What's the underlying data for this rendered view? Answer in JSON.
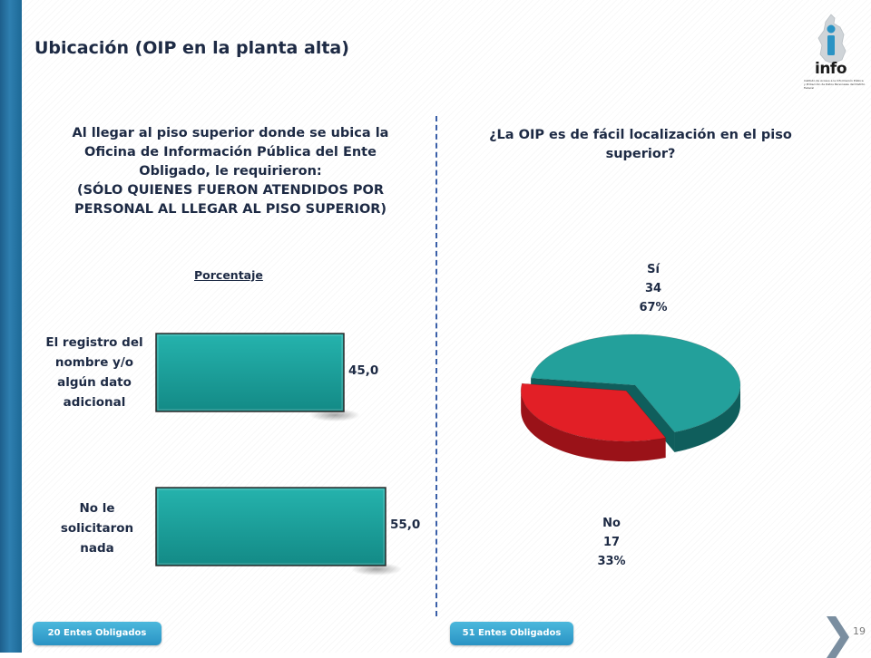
{
  "slide": {
    "title": "Ubicación (OIP en la planta alta)",
    "page_number": "19",
    "logo_text": "info",
    "logo_caption": "Instituto de Acceso a la Información Pública y Protección de Datos Personales del Distrito Federal"
  },
  "left_panel": {
    "title_lines": [
      "Al llegar al piso superior donde se ubica la",
      "Oficina de Información Pública del Ente",
      "Obligado, le requirieron:",
      "(SÓLO QUIENES FUERON ATENDIDOS POR",
      "PERSONAL AL LLEGAR AL PISO SUPERIOR)"
    ],
    "subtitle": "Porcentaje",
    "category_label_lines": [
      [
        "El registro del",
        "nombre y/o",
        "algún dato",
        "adicional"
      ],
      [
        "No le",
        "solicitaron",
        "nada"
      ]
    ],
    "value_labels": [
      "45,0",
      "55,0"
    ],
    "footer": "20 Entes Obligados"
  },
  "right_panel": {
    "title_lines": [
      "¿La OIP es de fácil localización en el piso",
      "superior?"
    ],
    "slice_labels": [
      [
        "Sí",
        "34",
        "67%"
      ],
      [
        "No",
        "17",
        "33%"
      ]
    ],
    "footer": "51 Entes Obligados"
  },
  "colors": {
    "bar_fill": "#1aa39e",
    "pie_si": "#23a09b",
    "pie_si_dark": "#0f5e5c",
    "pie_no": "#e21f26",
    "pie_no_dark": "#9a1218",
    "accent_blue": "#2a93c4"
  },
  "chart_data": [
    {
      "type": "bar",
      "orientation": "horizontal",
      "title": "Al llegar al piso superior donde se ubica la Oficina de Información Pública del Ente Obligado, le requirieron: (SÓLO QUIENES FUERON ATENDIDOS POR PERSONAL AL LLEGAR AL PISO SUPERIOR)",
      "ylabel": "Porcentaje",
      "categories": [
        "El registro del nombre y/o algún dato adicional",
        "No le solicitaron nada"
      ],
      "values": [
        45.0,
        55.0
      ],
      "xlim": [
        0,
        55
      ]
    },
    {
      "type": "pie",
      "title": "¿La OIP es de fácil localización en el piso superior?",
      "categories": [
        "Sí",
        "No"
      ],
      "values": [
        34,
        17
      ],
      "percentages": [
        67,
        33
      ]
    }
  ]
}
